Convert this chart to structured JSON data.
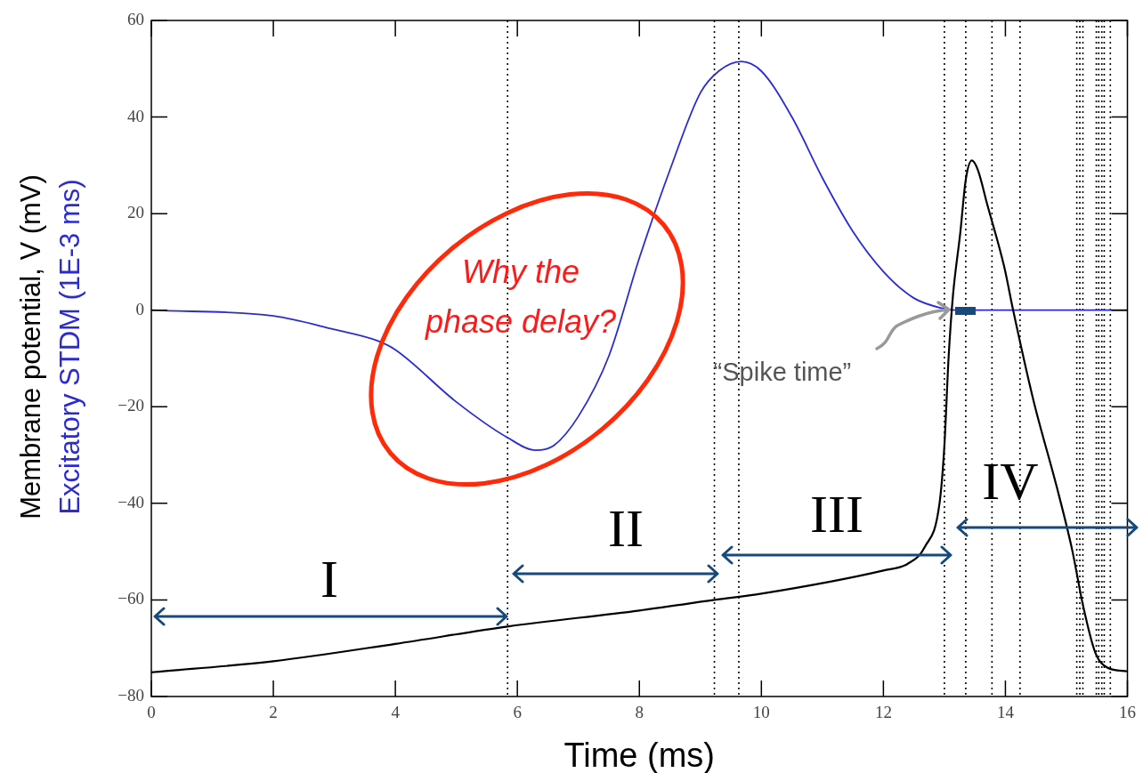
{
  "chart_data": {
    "type": "line",
    "xlabel": "Time (ms)",
    "xlim": [
      0,
      16
    ],
    "xticks": [
      0,
      2,
      4,
      6,
      8,
      10,
      12,
      14,
      16
    ],
    "ylim": [
      -80,
      60
    ],
    "yticks": [
      60,
      40,
      20,
      0,
      {
        "value": -20,
        "label": "−20"
      },
      {
        "value": -40,
        "label": "−40"
      },
      {
        "value": -60,
        "label": "−60"
      },
      {
        "value": -80,
        "label": "−80"
      }
    ],
    "grid": false,
    "marker": "none",
    "line_style": "solid",
    "series": [
      {
        "name": "Membrane potential, V (mV)",
        "color": "#000000",
        "x": [
          0,
          2,
          4,
          5.84,
          8,
          9.23,
          10,
          12,
          12.4,
          12.68,
          12.92,
          13,
          13.07,
          13.14,
          13.26,
          13.35,
          13.45,
          13.55,
          13.7,
          13.98,
          14.13,
          14.46,
          14.85,
          15.09,
          15.28,
          15.47,
          15.67,
          16
        ],
        "values": [
          -75,
          -72.7,
          -69.1,
          -65.5,
          -62.2,
          -60,
          -58.7,
          -53.9,
          -52.5,
          -49,
          -40,
          -28,
          -9.5,
          3,
          16,
          27,
          31,
          29,
          22,
          9,
          -0.2,
          -18.7,
          -37,
          -49.4,
          -61.6,
          -70.8,
          -74,
          -74.8
        ]
      },
      {
        "name": "Excitatory STDM (1E-3 ms)",
        "color": "#2b2bd6",
        "x": [
          0,
          2,
          3,
          3.7,
          4,
          5,
          5.84,
          6.3,
          6.6,
          7,
          7.5,
          8,
          8.5,
          9,
          9.3,
          9.67,
          10,
          10.5,
          11,
          11.5,
          12,
          12.5,
          13,
          13.2,
          14,
          15,
          16
        ],
        "values": [
          0,
          -1.2,
          -4,
          -6.3,
          -8.2,
          -19,
          -26.4,
          -29,
          -28,
          -22,
          -9.5,
          10.8,
          29,
          45,
          49.5,
          51.5,
          49.5,
          40,
          27.4,
          16.3,
          8,
          2.5,
          0.3,
          0,
          0,
          0,
          0
        ]
      }
    ],
    "ref_lines": [
      {
        "axis": "x",
        "value": 5.84
      },
      {
        "axis": "x",
        "value": 9.23
      },
      {
        "axis": "x",
        "value": 9.63
      },
      {
        "axis": "x",
        "value": 13.0
      },
      {
        "axis": "x",
        "value": 13.35
      },
      {
        "axis": "x",
        "value": 13.78
      },
      {
        "axis": "x",
        "value": 14.24
      },
      {
        "axis": "x",
        "value": 15.17
      },
      {
        "axis": "x",
        "value": 15.22
      },
      {
        "axis": "x",
        "value": 15.27
      },
      {
        "axis": "x",
        "value": 15.49
      },
      {
        "axis": "x",
        "value": 15.53
      },
      {
        "axis": "x",
        "value": 15.58
      },
      {
        "axis": "x",
        "value": 15.62
      },
      {
        "axis": "x",
        "value": 15.72
      }
    ],
    "annotations": [
      "I",
      "II",
      "III",
      "IV",
      "Why the phase delay?",
      {
        "text": "“Spike time”",
        "x": 13,
        "y": 0.3
      }
    ]
  }
}
